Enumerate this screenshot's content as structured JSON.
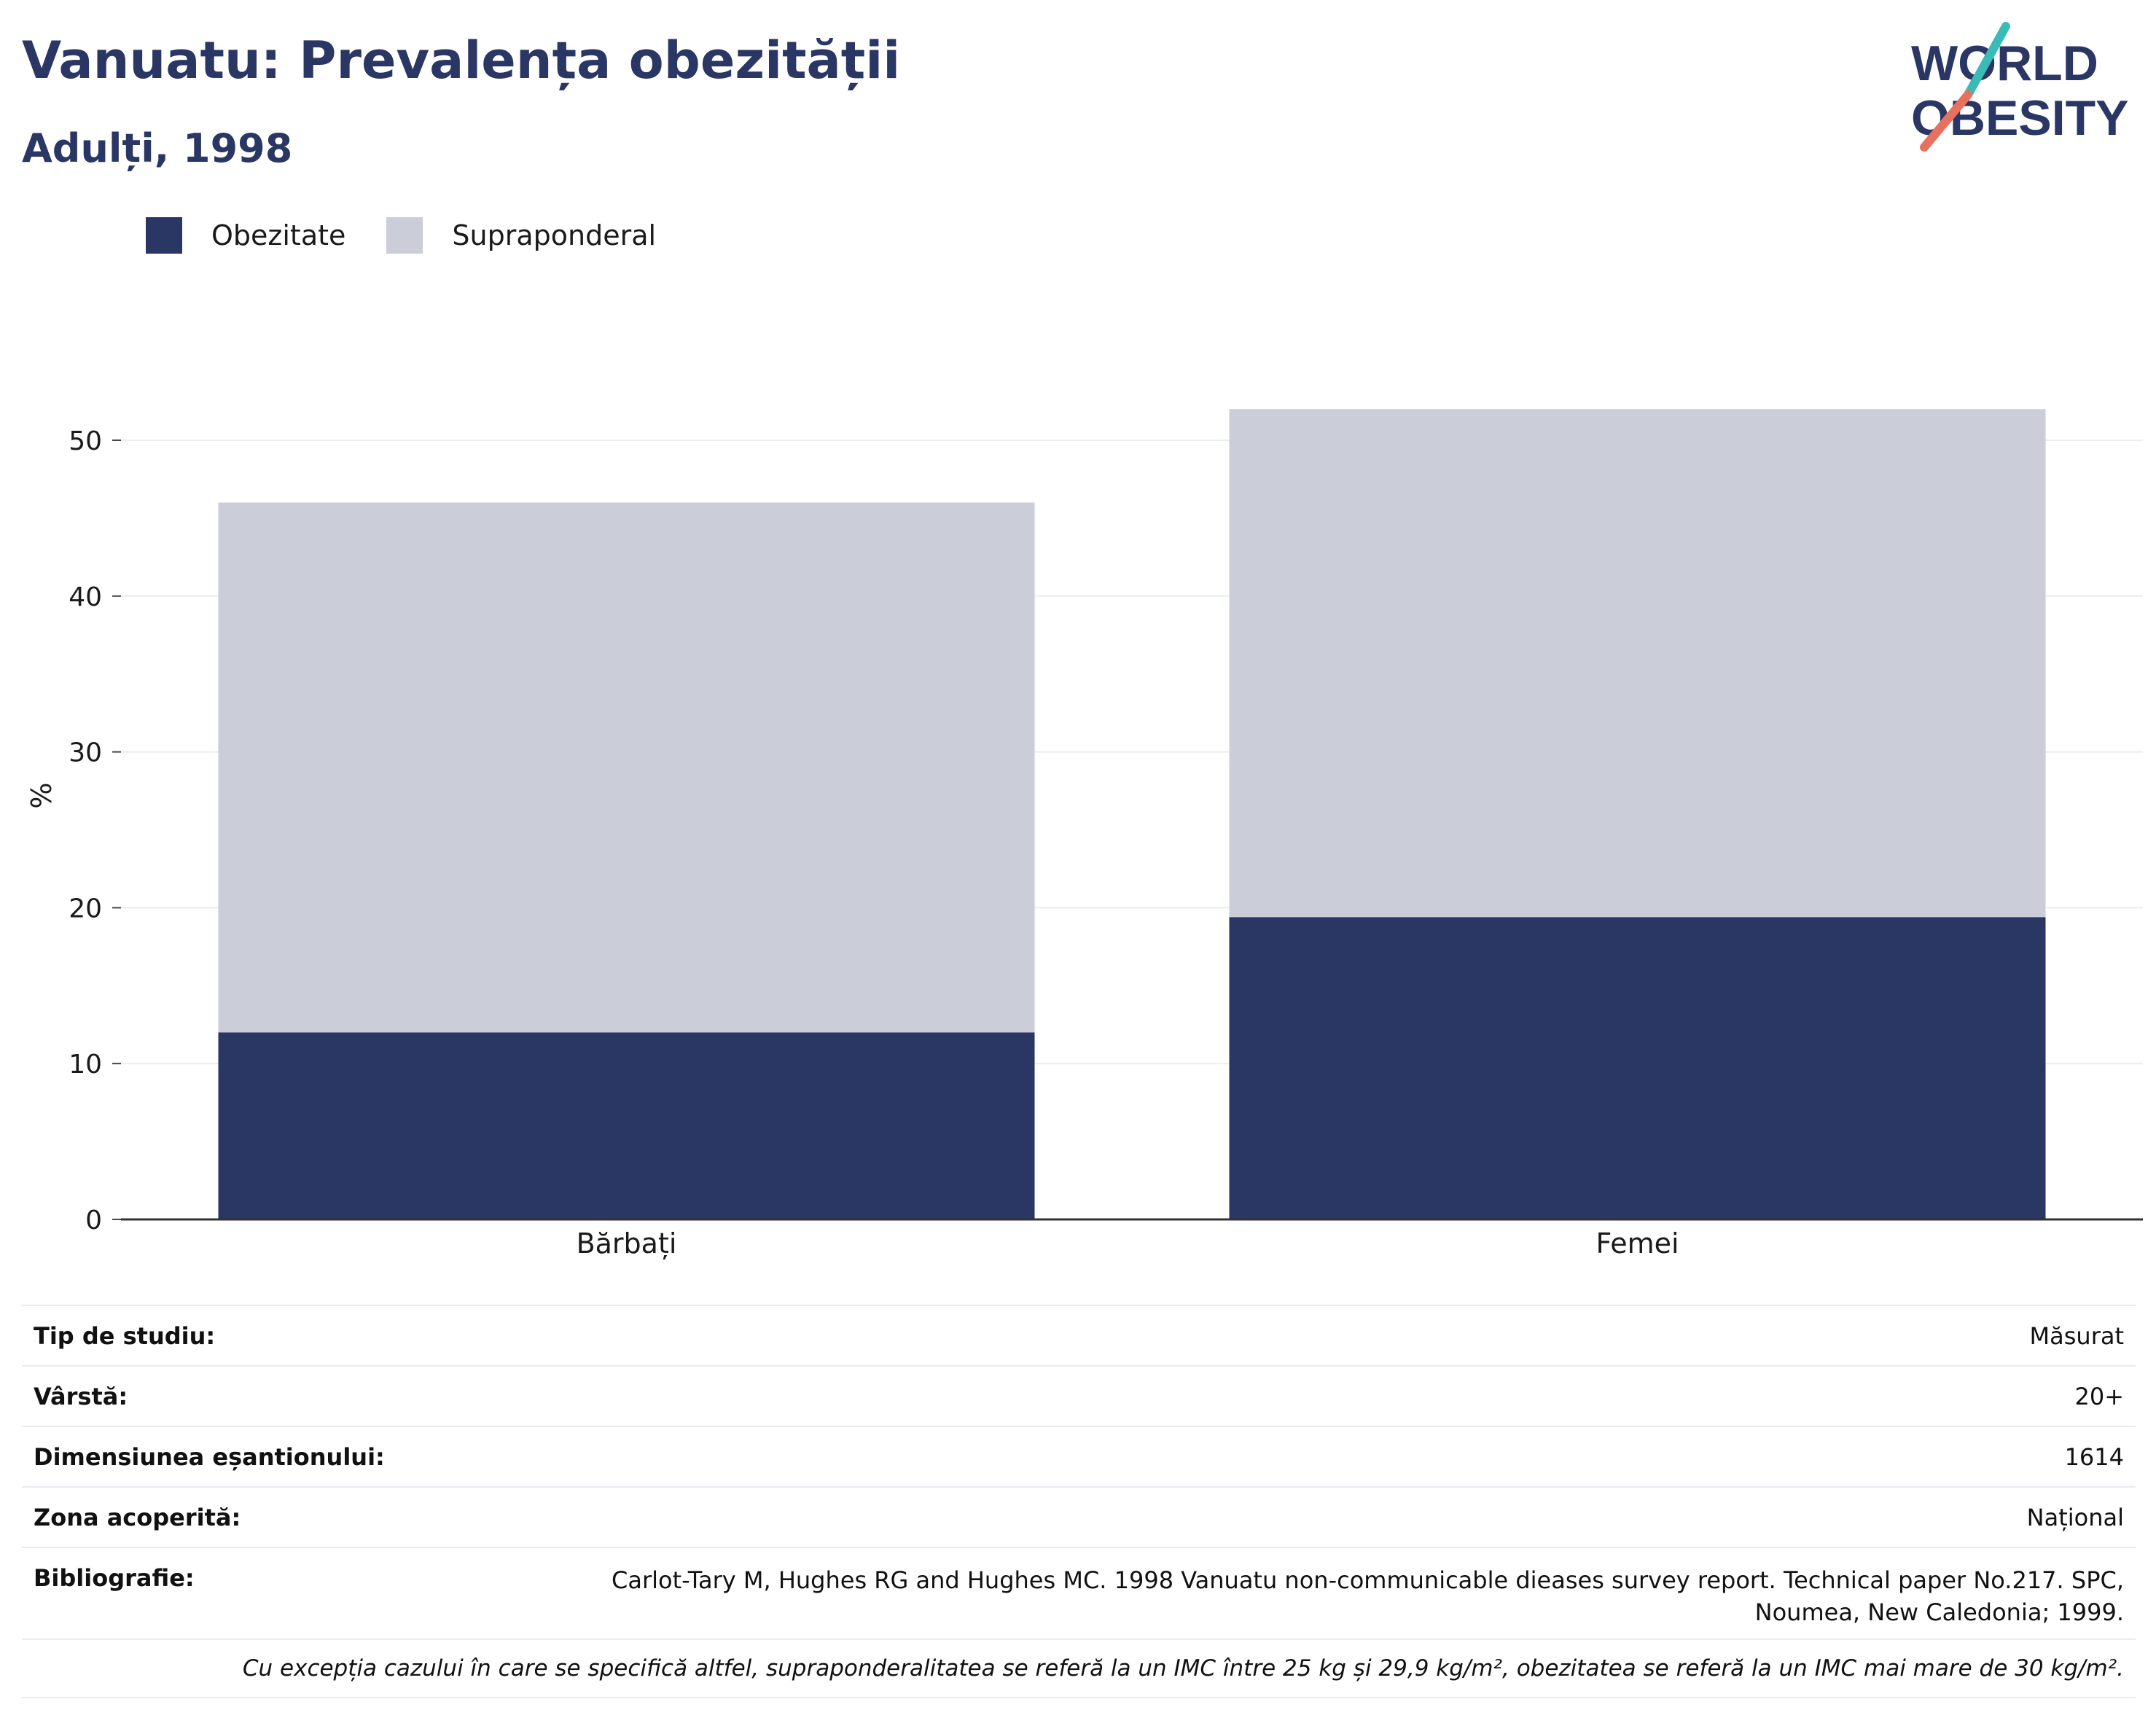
{
  "header": {
    "title": "Vanuatu: Prevalența obezității",
    "subtitle": "Adulți, 1998"
  },
  "logo": {
    "line1": "WORLD",
    "line2": "OBESITY"
  },
  "colors": {
    "obesity": "#2a3663",
    "overweight": "#cbcdd8",
    "text_navy": "#2a3663",
    "logo_teal": "#3bbbb6",
    "logo_coral": "#e8705f"
  },
  "chart_data": {
    "type": "bar",
    "stacked": true,
    "categories": [
      "Bărbați",
      "Femei"
    ],
    "series": [
      {
        "name": "Obezitate",
        "values": [
          12.0,
          19.4
        ],
        "color": "#2a3663"
      },
      {
        "name": "Supraponderal",
        "values": [
          34.0,
          32.6
        ],
        "color": "#cbcdd8"
      }
    ],
    "ylabel": "%",
    "ylim": [
      0,
      55
    ],
    "yticks": [
      0,
      10,
      20,
      30,
      40,
      50
    ],
    "grid": true,
    "legend": "top-left"
  },
  "info": {
    "rows": [
      {
        "label": "Tip de studiu:",
        "value": "Măsurat"
      },
      {
        "label": "Vârstă:",
        "value": "20+"
      },
      {
        "label": "Dimensiunea eșantionului:",
        "value": "1614"
      },
      {
        "label": "Zona acoperită:",
        "value": "Național"
      }
    ],
    "bibliography": {
      "label": "Bibliografie:",
      "value": "Carlot-Tary M, Hughes RG and Hughes MC. 1998 Vanuatu non-communicable dieases survey report. Technical paper No.217. SPC, Noumea, New Caledonia; 1999."
    },
    "note": "Cu excepția cazului în care se specifică altfel, supraponderalitatea se referă la un IMC între 25 kg și 29,9 kg/m², obezitatea se referă la un IMC mai mare de 30 kg/m²."
  }
}
